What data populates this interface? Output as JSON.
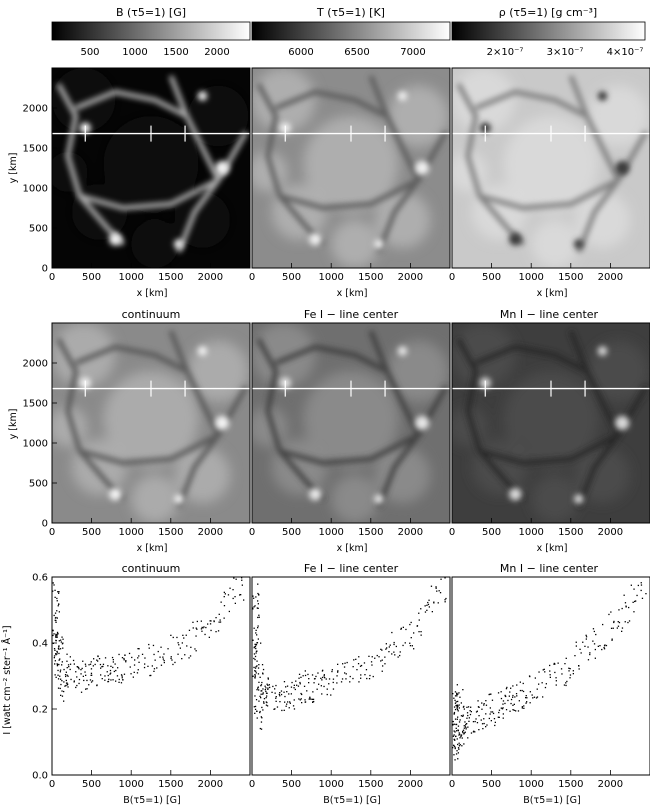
{
  "figure": {
    "colorbars": [
      {
        "label": "B (τ5=1) [G]",
        "ticks": [
          "500",
          "1000",
          "1500",
          "2000"
        ]
      },
      {
        "label": "T (τ5=1) [K]",
        "ticks": [
          "6000",
          "6500",
          "7000"
        ]
      },
      {
        "label": "ρ (τ5=1) [g cm⁻³]",
        "ticks": [
          "2×10⁻⁷",
          "3×10⁻⁷",
          "4×10⁻⁷"
        ]
      }
    ],
    "row2_titles": [
      "continuum",
      "Fe I − line center",
      "Mn I − line center"
    ]
  },
  "chart_data": [
    {
      "type": "heatmap",
      "panels": [
        "B (τ5=1) [G]",
        "T (τ5=1) [K]",
        "ρ (τ5=1) [g cm⁻³]"
      ],
      "xlabel": "x [km]",
      "ylabel": "y [km]",
      "xlim": [
        0,
        2500
      ],
      "ylim": [
        0,
        2500
      ],
      "xticks": [
        "0",
        "500",
        "1000",
        "1500",
        "2000"
      ],
      "yticks": [
        "0",
        "500",
        "1000",
        "1500",
        "2000"
      ],
      "cut_y": 1680,
      "cut_marks_x": [
        420,
        1250,
        1680
      ]
    },
    {
      "type": "heatmap",
      "panels": [
        "continuum",
        "Fe I − line center",
        "Mn I − line center"
      ],
      "xlabel": "x [km]",
      "ylabel": "y [km]",
      "xlim": [
        0,
        2500
      ],
      "ylim": [
        0,
        2500
      ],
      "xticks": [
        "0",
        "500",
        "1000",
        "1500",
        "2000"
      ],
      "yticks": [
        "0",
        "500",
        "1000",
        "1500",
        "2000"
      ],
      "cut_y": 1680,
      "cut_marks_x": [
        420,
        1250,
        1680
      ]
    },
    {
      "type": "scatter",
      "panels": [
        "continuum",
        "Fe I − line center",
        "Mn I − line center"
      ],
      "xlabel": "B(τ5=1) [G]",
      "ylabel": "I [watt cm⁻² ster⁻¹ Å⁻¹]",
      "xlim": [
        0,
        2500
      ],
      "ylim": [
        0,
        0.6
      ],
      "xticks": [
        "0",
        "500",
        "1000",
        "1500",
        "2000"
      ],
      "yticks": [
        "0.0",
        "0.2",
        "0.4",
        "0.6"
      ],
      "series": [
        {
          "points": [
            [
              20,
              0.45
            ],
            [
              40,
              0.52
            ],
            [
              60,
              0.38
            ],
            [
              100,
              0.33
            ],
            [
              150,
              0.3
            ],
            [
              200,
              0.32
            ],
            [
              300,
              0.31
            ],
            [
              400,
              0.3
            ],
            [
              500,
              0.31
            ],
            [
              600,
              0.32
            ],
            [
              700,
              0.31
            ],
            [
              800,
              0.33
            ],
            [
              900,
              0.32
            ],
            [
              1000,
              0.33
            ],
            [
              1100,
              0.34
            ],
            [
              1200,
              0.35
            ],
            [
              1300,
              0.36
            ],
            [
              1400,
              0.37
            ],
            [
              1500,
              0.38
            ],
            [
              1600,
              0.39
            ],
            [
              1700,
              0.4
            ],
            [
              1800,
              0.42
            ],
            [
              1900,
              0.44
            ],
            [
              2000,
              0.46
            ],
            [
              2100,
              0.48
            ],
            [
              2200,
              0.52
            ],
            [
              2300,
              0.56
            ],
            [
              2400,
              0.58
            ]
          ]
        },
        {
          "points": [
            [
              20,
              0.4
            ],
            [
              40,
              0.48
            ],
            [
              60,
              0.3
            ],
            [
              100,
              0.25
            ],
            [
              150,
              0.24
            ],
            [
              200,
              0.25
            ],
            [
              300,
              0.24
            ],
            [
              400,
              0.24
            ],
            [
              500,
              0.25
            ],
            [
              600,
              0.26
            ],
            [
              700,
              0.27
            ],
            [
              800,
              0.27
            ],
            [
              900,
              0.28
            ],
            [
              1000,
              0.29
            ],
            [
              1100,
              0.3
            ],
            [
              1200,
              0.31
            ],
            [
              1300,
              0.32
            ],
            [
              1400,
              0.33
            ],
            [
              1500,
              0.34
            ],
            [
              1600,
              0.36
            ],
            [
              1700,
              0.37
            ],
            [
              1800,
              0.39
            ],
            [
              1900,
              0.41
            ],
            [
              2000,
              0.43
            ],
            [
              2100,
              0.46
            ],
            [
              2200,
              0.49
            ],
            [
              2300,
              0.53
            ],
            [
              2400,
              0.57
            ]
          ]
        },
        {
          "points": [
            [
              20,
              0.15
            ],
            [
              40,
              0.17
            ],
            [
              60,
              0.15
            ],
            [
              100,
              0.16
            ],
            [
              150,
              0.16
            ],
            [
              200,
              0.17
            ],
            [
              300,
              0.18
            ],
            [
              400,
              0.19
            ],
            [
              500,
              0.2
            ],
            [
              600,
              0.21
            ],
            [
              700,
              0.22
            ],
            [
              800,
              0.23
            ],
            [
              900,
              0.25
            ],
            [
              1000,
              0.26
            ],
            [
              1100,
              0.28
            ],
            [
              1200,
              0.29
            ],
            [
              1300,
              0.31
            ],
            [
              1400,
              0.32
            ],
            [
              1500,
              0.34
            ],
            [
              1600,
              0.36
            ],
            [
              1700,
              0.38
            ],
            [
              1800,
              0.4
            ],
            [
              1900,
              0.42
            ],
            [
              2000,
              0.45
            ],
            [
              2100,
              0.47
            ],
            [
              2200,
              0.5
            ],
            [
              2300,
              0.54
            ],
            [
              2400,
              0.58
            ]
          ]
        }
      ]
    }
  ]
}
